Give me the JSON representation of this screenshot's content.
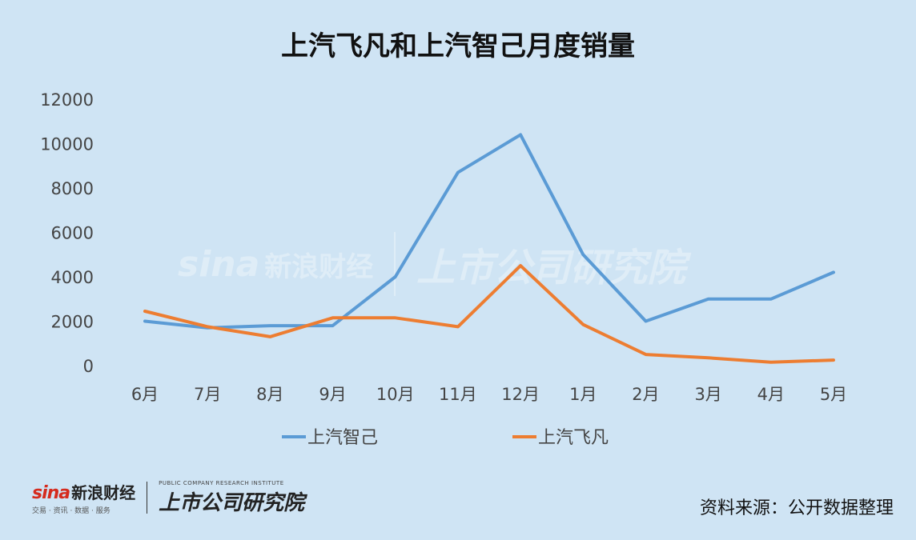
{
  "title": "上汽飞凡和上汽智己月度销量",
  "source_note": "资料来源：公开数据整理",
  "logos": {
    "sina_mark": "sina",
    "sina_cn": "新浪财经",
    "sina_sub": "交易 · 资讯 · 数据 · 服务",
    "institute_cn": "上市公司研究院",
    "institute_en": "PUBLIC COMPANY RESEARCH INSTITUTE"
  },
  "colors": {
    "background": "#cfe4f4",
    "series_zhiji": "#5b9bd5",
    "series_feifan": "#ed7d31"
  },
  "chart_data": {
    "type": "line",
    "title": "上汽飞凡和上汽智己月度销量",
    "xlabel": "",
    "ylabel": "",
    "categories": [
      "6月",
      "7月",
      "8月",
      "9月",
      "10月",
      "11月",
      "12月",
      "1月",
      "2月",
      "3月",
      "4月",
      "5月"
    ],
    "ylim": [
      0,
      12000
    ],
    "yticks": [
      0,
      2000,
      4000,
      6000,
      8000,
      10000,
      12000
    ],
    "grid": false,
    "legend": "bottom",
    "series": [
      {
        "name": "上汽智己",
        "color": "#5b9bd5",
        "values": [
          2000,
          1700,
          1800,
          1800,
          4000,
          8700,
          10400,
          5000,
          2000,
          3000,
          3000,
          4200
        ]
      },
      {
        "name": "上汽飞凡",
        "color": "#ed7d31",
        "values": [
          2450,
          1750,
          1300,
          2150,
          2150,
          1750,
          4500,
          1850,
          500,
          350,
          150,
          250
        ]
      }
    ]
  }
}
